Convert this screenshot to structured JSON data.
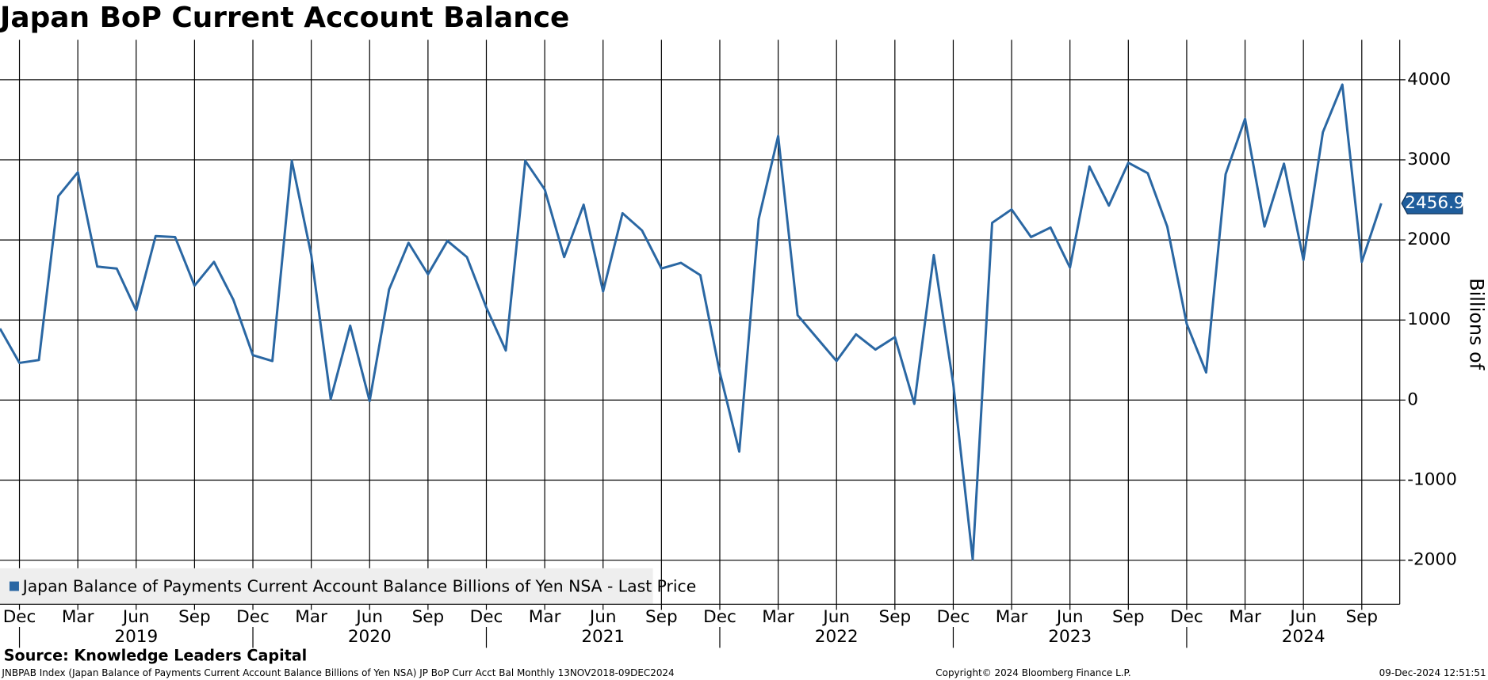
{
  "chart_data": {
    "type": "line",
    "title": "Japan BoP Current Account Balance",
    "y_axis_label": "Billions of",
    "source": "Source: Knowledge Leaders Capital",
    "footer_left": "JNBPAB Index (Japan Balance of Payments Current Account Balance Billions of Yen NSA) JP BoP Curr Acct Bal  Monthly 13NOV2018-09DEC2024",
    "footer_center": "Copyright© 2024 Bloomberg Finance L.P.",
    "footer_right": "09-Dec-2024 12:51:51",
    "x": [
      "2018-11",
      "2018-12",
      "2019-01",
      "2019-02",
      "2019-03",
      "2019-04",
      "2019-05",
      "2019-06",
      "2019-07",
      "2019-08",
      "2019-09",
      "2019-10",
      "2019-11",
      "2019-12",
      "2020-01",
      "2020-02",
      "2020-03",
      "2020-04",
      "2020-05",
      "2020-06",
      "2020-07",
      "2020-08",
      "2020-09",
      "2020-10",
      "2020-11",
      "2020-12",
      "2021-01",
      "2021-02",
      "2021-03",
      "2021-04",
      "2021-05",
      "2021-06",
      "2021-07",
      "2021-08",
      "2021-09",
      "2021-10",
      "2021-11",
      "2021-12",
      "2022-01",
      "2022-02",
      "2022-03",
      "2022-04",
      "2022-05",
      "2022-06",
      "2022-07",
      "2022-08",
      "2022-09",
      "2022-10",
      "2022-11",
      "2022-12",
      "2023-01",
      "2023-02",
      "2023-03",
      "2023-04",
      "2023-05",
      "2023-06",
      "2023-07",
      "2023-08",
      "2023-09",
      "2023-10",
      "2023-11",
      "2023-12",
      "2024-01",
      "2024-02",
      "2024-03",
      "2024-04",
      "2024-05",
      "2024-06",
      "2024-07",
      "2024-08",
      "2024-09",
      "2024-10"
    ],
    "series": [
      {
        "name": "Japan Balance of Payments Current Account Balance Billions of Yen NSA - Last Price",
        "color": "#2a67a3",
        "values": [
          893,
          464,
          500,
          2548,
          2845,
          1667,
          1643,
          1119,
          2048,
          2036,
          1429,
          1726,
          1250,
          560,
          488,
          2988,
          1810,
          12,
          929,
          -12,
          1381,
          1964,
          1571,
          1988,
          1786,
          1155,
          619,
          2988,
          2631,
          1786,
          2440,
          1357,
          2333,
          2119,
          1643,
          1714,
          1560,
          345,
          -643,
          2262,
          3298,
          1060,
          774,
          488,
          821,
          631,
          786,
          -48,
          1810,
          202,
          -1988,
          2214,
          2381,
          2036,
          2155,
          1655,
          2917,
          2429,
          2964,
          2833,
          2167,
          952,
          345,
          2821,
          3512,
          2167,
          2952,
          1750,
          3345,
          3940,
          1726,
          2456.9
        ]
      }
    ],
    "xticks": [
      {
        "value": "2018-12",
        "label": "Dec"
      },
      {
        "value": "2019-03",
        "label": "Mar"
      },
      {
        "value": "2019-06",
        "label": "Jun"
      },
      {
        "value": "2019-09",
        "label": "Sep"
      },
      {
        "value": "2019-12",
        "label": "Dec"
      },
      {
        "value": "2020-03",
        "label": "Mar"
      },
      {
        "value": "2020-06",
        "label": "Jun"
      },
      {
        "value": "2020-09",
        "label": "Sep"
      },
      {
        "value": "2020-12",
        "label": "Dec"
      },
      {
        "value": "2021-03",
        "label": "Mar"
      },
      {
        "value": "2021-06",
        "label": "Jun"
      },
      {
        "value": "2021-09",
        "label": "Sep"
      },
      {
        "value": "2021-12",
        "label": "Dec"
      },
      {
        "value": "2022-03",
        "label": "Mar"
      },
      {
        "value": "2022-06",
        "label": "Jun"
      },
      {
        "value": "2022-09",
        "label": "Sep"
      },
      {
        "value": "2022-12",
        "label": "Dec"
      },
      {
        "value": "2023-03",
        "label": "Mar"
      },
      {
        "value": "2023-06",
        "label": "Jun"
      },
      {
        "value": "2023-09",
        "label": "Sep"
      },
      {
        "value": "2023-12",
        "label": "Dec"
      },
      {
        "value": "2024-03",
        "label": "Mar"
      },
      {
        "value": "2024-06",
        "label": "Jun"
      },
      {
        "value": "2024-09",
        "label": "Sep"
      }
    ],
    "year_labels": [
      "2019",
      "2020",
      "2021",
      "2022",
      "2023",
      "2024"
    ],
    "ylim": [
      -2550,
      4500
    ],
    "yticks": [
      -2000,
      -1000,
      0,
      1000,
      2000,
      3000,
      4000
    ],
    "grid": true
  }
}
